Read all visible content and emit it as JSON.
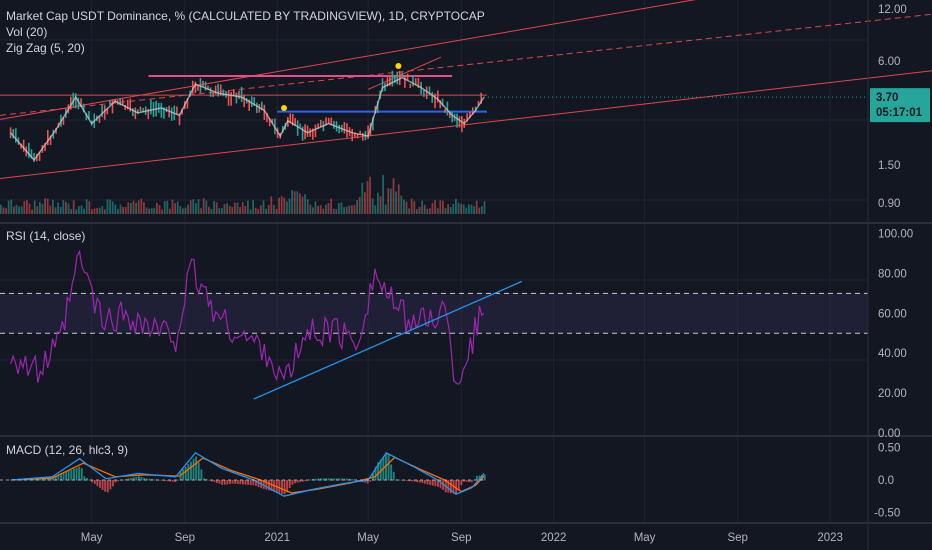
{
  "legend": {
    "main": "Market Cap USDT Dominance, % (CALCULATED BY TRADINGVIEW), 1D, CRYPTOCAP",
    "vol": "Vol (20)",
    "zigzag": "Zig Zag (5, 20)",
    "rsi": "RSI (14, close)",
    "macd": "MACD (12, 26, hlc3, 9)"
  },
  "colors": {
    "background": "#131722",
    "grid": "#1f2330",
    "axis_text": "#b2b5be",
    "price_line": "#d1d4dc",
    "candle_up": "#26a69a",
    "candle_down": "#ef5350",
    "trend_red": "#e0474c",
    "resistance_magenta": "#e04f88",
    "support_blue": "#2962ff",
    "rsi_line": "#9c27b0",
    "rsi_band": "#7e57c2",
    "rsi_trend_blue": "#2196f3",
    "macd_line": "#2196f3",
    "signal_line": "#ff6d00",
    "badge": "#26a69a",
    "zigzag_marker": "#ffd600"
  },
  "price_axis": {
    "ticks": [
      "12.00",
      "6.00",
      "3.70",
      "1.50",
      "0.90"
    ]
  },
  "price_badge": {
    "price": "3.70",
    "countdown": "05:17:01"
  },
  "rsi_axis": {
    "ticks": [
      "100.00",
      "80.00",
      "60.00",
      "40.00",
      "20.00",
      "0.00"
    ]
  },
  "macd_axis": {
    "ticks": [
      "0.50",
      "0.0",
      "-0.50"
    ]
  },
  "time_axis": {
    "ticks": [
      "May",
      "Sep",
      "2021",
      "May",
      "Sep",
      "2022",
      "May",
      "Sep",
      "2023"
    ]
  },
  "chart_data": [
    {
      "type": "line",
      "panel": "price",
      "scale": "log",
      "x_range": [
        "2020-01-01",
        "2023-02-20"
      ],
      "ylim": [
        0.7,
        13.5
      ],
      "series": [
        {
          "x": [
            "2020-01-15",
            "2020-02-15",
            "2020-03-15",
            "2020-04-10",
            "2020-05-01",
            "2020-06-01",
            "2020-07-01",
            "2020-08-01",
            "2020-08-25",
            "2020-09-15",
            "2020-10-15",
            "2020-11-15",
            "2020-12-15",
            "2021-01-05",
            "2021-01-15",
            "2021-02-10",
            "2021-03-10",
            "2021-04-10",
            "2021-05-01",
            "2021-05-20",
            "2021-06-15",
            "2021-07-10",
            "2021-08-01",
            "2021-08-20",
            "2021-09-05",
            "2021-09-20",
            "2021-10-01"
          ],
          "values": [
            2.3,
            1.6,
            2.4,
            3.7,
            2.6,
            3.5,
            3.0,
            3.2,
            2.9,
            4.4,
            3.9,
            3.7,
            3.1,
            2.2,
            2.7,
            2.3,
            2.6,
            2.3,
            2.2,
            4.2,
            4.8,
            4.2,
            3.6,
            2.9,
            2.6,
            3.1,
            3.7
          ]
        }
      ]
    },
    {
      "type": "bar",
      "panel": "volume",
      "series": [
        {
          "name": "Vol (20)"
        }
      ]
    },
    {
      "type": "line",
      "panel": "rsi",
      "ylim": [
        0,
        100
      ],
      "series": [
        {
          "name": "RSI (14, close)",
          "x": [
            "2020-01-15",
            "2020-02-20",
            "2020-03-20",
            "2020-04-15",
            "2020-05-15",
            "2020-06-15",
            "2020-07-20",
            "2020-08-20",
            "2020-09-10",
            "2020-10-15",
            "2020-11-15",
            "2020-12-15",
            "2021-01-10",
            "2021-02-10",
            "2021-03-15",
            "2021-04-15",
            "2021-05-10",
            "2021-06-10",
            "2021-07-10",
            "2021-08-10",
            "2021-08-25",
            "2021-09-10",
            "2021-09-25",
            "2021-10-01"
          ],
          "values": [
            40,
            30,
            45,
            88,
            55,
            60,
            52,
            48,
            82,
            58,
            48,
            43,
            25,
            50,
            52,
            45,
            80,
            60,
            55,
            62,
            25,
            40,
            58,
            60
          ]
        }
      ],
      "bands": [
        70,
        50
      ]
    },
    {
      "type": "line",
      "panel": "macd",
      "ylim": [
        -0.65,
        0.65
      ],
      "series": [
        {
          "name": "MACD",
          "x": [
            "2020-01-15",
            "2020-03-10",
            "2020-04-15",
            "2020-05-20",
            "2020-07-01",
            "2020-08-20",
            "2020-09-15",
            "2020-10-20",
            "2020-12-01",
            "2021-01-10",
            "2021-02-15",
            "2021-04-01",
            "2021-05-01",
            "2021-05-25",
            "2021-07-01",
            "2021-08-01",
            "2021-08-25",
            "2021-09-15",
            "2021-10-01"
          ],
          "values": [
            0.0,
            0.05,
            0.33,
            0.02,
            0.1,
            0.05,
            0.42,
            0.18,
            0.0,
            -0.25,
            -0.15,
            -0.05,
            0.0,
            0.42,
            0.2,
            0.0,
            -0.22,
            -0.12,
            0.1
          ]
        },
        {
          "name": "Signal",
          "x": [
            "2020-01-15",
            "2020-03-10",
            "2020-04-20",
            "2020-06-01",
            "2020-07-10",
            "2020-08-25",
            "2020-09-25",
            "2020-11-01",
            "2020-12-10",
            "2021-01-20",
            "2021-02-25",
            "2021-04-10",
            "2021-05-10",
            "2021-06-05",
            "2021-07-10",
            "2021-08-10",
            "2021-09-01",
            "2021-09-20",
            "2021-10-01"
          ],
          "values": [
            0.0,
            0.03,
            0.26,
            0.05,
            0.08,
            0.06,
            0.34,
            0.15,
            0.0,
            -0.2,
            -0.14,
            -0.04,
            0.05,
            0.35,
            0.16,
            0.0,
            -0.18,
            -0.08,
            0.06
          ]
        }
      ]
    }
  ]
}
